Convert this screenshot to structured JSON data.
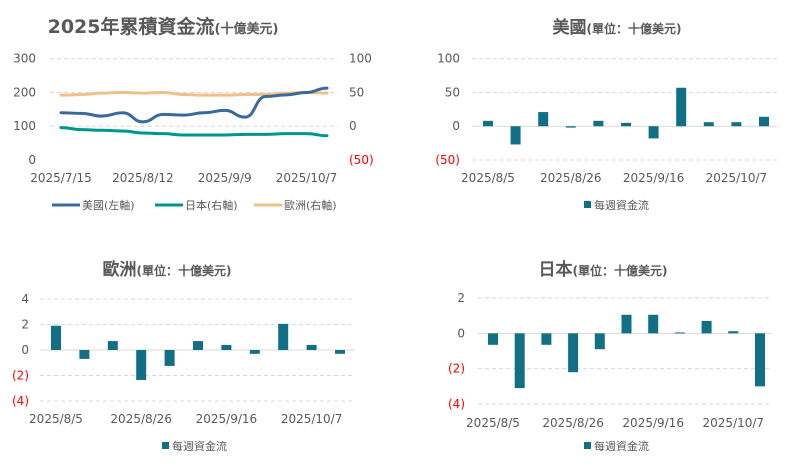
{
  "colors": {
    "us": "#3A6A9B",
    "japan": "#00968F",
    "europe": "#F0C088",
    "bar": "#116F86",
    "negative_tick": "#FF0000",
    "text": "#595959",
    "grid": "#D9D9D9"
  },
  "chart_data": [
    {
      "type": "line",
      "title": "2025年累積資金流",
      "title_suffix": "(十億美元)",
      "x": [
        "2025/7/15",
        "2025/7/22",
        "2025/7/29",
        "2025/8/5",
        "2025/8/12",
        "2025/8/19",
        "2025/8/26",
        "2025/9/2",
        "2025/9/9",
        "2025/9/16",
        "2025/9/23",
        "2025/9/30",
        "2025/10/7",
        "2025/10/14"
      ],
      "x_tick_labels": [
        "2025/7/15",
        "2025/8/12",
        "2025/9/9",
        "2025/10/7"
      ],
      "y_left": {
        "range": [
          0,
          300
        ],
        "ticks": [
          "0",
          "100",
          "200",
          "300"
        ]
      },
      "y_right": {
        "range": [
          -50,
          100
        ],
        "ticks": [
          "(50)",
          "0",
          "50",
          "100"
        ]
      },
      "grid": true,
      "legend_position": "bottom",
      "series": [
        {
          "name": "美國(左軸)",
          "axis": "left",
          "color": "#3A6A9B",
          "values": [
            140,
            138,
            130,
            140,
            113,
            135,
            133,
            140,
            147,
            127,
            188,
            193,
            200,
            213
          ]
        },
        {
          "name": "日本(右軸)",
          "axis": "right",
          "color": "#00968F",
          "values": [
            -2,
            -5,
            -6,
            -7,
            -10,
            -11,
            -13,
            -13,
            -13,
            -12,
            -12,
            -11,
            -11,
            -14
          ]
        },
        {
          "name": "歐洲(右軸)",
          "axis": "right",
          "color": "#F0C088",
          "values": [
            46,
            47,
            49,
            50,
            49,
            50,
            47,
            46,
            46,
            47,
            47,
            49,
            50,
            49
          ]
        }
      ]
    },
    {
      "type": "bar",
      "title": "美國",
      "title_suffix": "(單位：十億美元)",
      "categories": [
        "2025/8/5",
        "2025/8/12",
        "2025/8/19",
        "2025/8/26",
        "2025/9/2",
        "2025/9/9",
        "2025/9/16",
        "2025/9/23",
        "2025/9/30",
        "2025/10/7",
        "2025/10/14"
      ],
      "x_tick_labels": [
        "2025/8/5",
        "2025/8/26",
        "2025/9/16",
        "2025/10/7"
      ],
      "ylim": [
        -50,
        100
      ],
      "y_ticks": [
        "(50)",
        "0",
        "50",
        "100"
      ],
      "grid": true,
      "legend_position": "bottom",
      "series": [
        {
          "name": "每週資金流",
          "values": [
            8,
            -27,
            21,
            -2,
            8,
            5,
            -18,
            57,
            6,
            6,
            14
          ]
        }
      ]
    },
    {
      "type": "bar",
      "title": "歐洲",
      "title_suffix": "(單位：十億美元)",
      "categories": [
        "2025/8/5",
        "2025/8/12",
        "2025/8/19",
        "2025/8/26",
        "2025/9/2",
        "2025/9/9",
        "2025/9/16",
        "2025/9/23",
        "2025/9/30",
        "2025/10/7",
        "2025/10/14"
      ],
      "x_tick_labels": [
        "2025/8/5",
        "2025/8/26",
        "2025/9/16",
        "2025/10/7"
      ],
      "ylim": [
        -4,
        4
      ],
      "y_ticks": [
        "(4)",
        "(2)",
        "0",
        "2",
        "4"
      ],
      "grid": true,
      "legend_position": "bottom",
      "series": [
        {
          "name": "每週資金流",
          "values": [
            1.9,
            -0.7,
            0.7,
            -2.35,
            -1.25,
            0.7,
            0.4,
            -0.3,
            2.05,
            0.4,
            -0.3
          ]
        }
      ]
    },
    {
      "type": "bar",
      "title": "日本",
      "title_suffix": "(單位：十億美元)",
      "categories": [
        "2025/8/5",
        "2025/8/12",
        "2025/8/19",
        "2025/8/26",
        "2025/9/2",
        "2025/9/9",
        "2025/9/16",
        "2025/9/23",
        "2025/9/30",
        "2025/10/7",
        "2025/10/14"
      ],
      "x_tick_labels": [
        "2025/8/5",
        "2025/8/26",
        "2025/9/16",
        "2025/10/7"
      ],
      "ylim": [
        -4,
        2
      ],
      "y_ticks": [
        "(4)",
        "(2)",
        "0",
        "2"
      ],
      "grid": true,
      "legend_position": "bottom",
      "series": [
        {
          "name": "每週資金流",
          "values": [
            -0.65,
            -3.1,
            -0.65,
            -2.2,
            -0.9,
            1.05,
            1.05,
            0.05,
            0.7,
            0.12,
            -3.0
          ]
        }
      ]
    }
  ]
}
